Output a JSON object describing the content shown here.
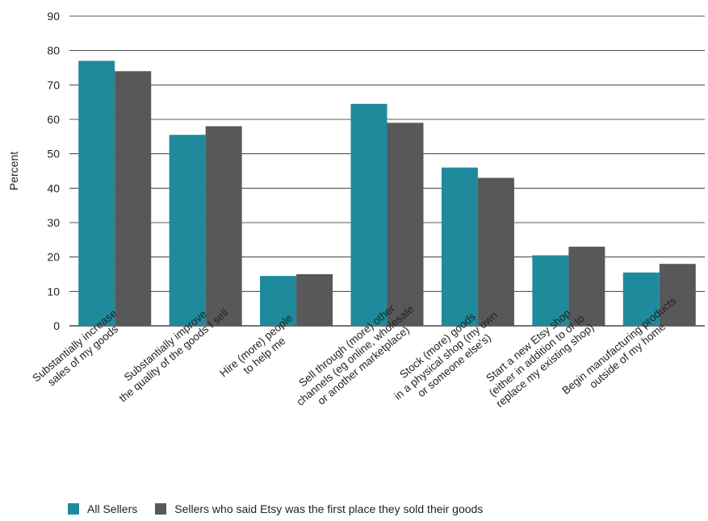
{
  "chart_data": {
    "type": "bar",
    "ylabel": "Percent",
    "ylim": [
      0,
      90
    ],
    "yticks": [
      0,
      10,
      20,
      30,
      40,
      50,
      60,
      70,
      80,
      90
    ],
    "grid": true,
    "legend_position": "bottom-left",
    "categories": [
      [
        "Substantially increase",
        "sales of my goods"
      ],
      [
        "Substantially improve",
        "the quality of the goods I sell"
      ],
      [
        "Hire (more) people",
        "to help me"
      ],
      [
        "Sell through (more) other",
        "channels (eg online, wholesale",
        "or another marketplace)"
      ],
      [
        "Stock (more) goods",
        "in a physical shop (my own",
        "or someone else's)"
      ],
      [
        "Start a new Etsy shop",
        "(either in addition to or to",
        "replace my existing shop)"
      ],
      [
        "Begin manufacturing products",
        "outside of my home"
      ]
    ],
    "series": [
      {
        "name": "All Sellers",
        "color": "#1f8a9c",
        "values": [
          77,
          55.5,
          14.5,
          64.5,
          46,
          20.5,
          15.5
        ]
      },
      {
        "name": "Sellers who said Etsy was the first place they sold their goods",
        "color": "#58585a",
        "values": [
          74,
          58,
          15,
          59,
          43,
          23,
          18
        ]
      }
    ]
  }
}
